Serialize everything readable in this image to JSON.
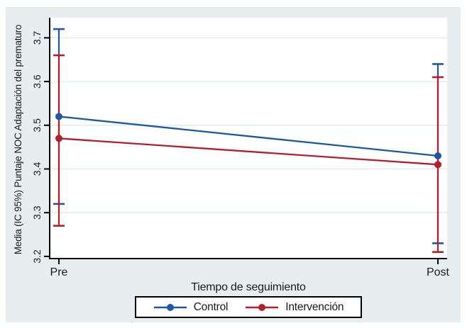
{
  "figure": {
    "background_color": "#e8eef0",
    "plot_background_color": "#ffffff",
    "grid_color": "#dfe8ea",
    "axis_color": "#000000",
    "text_color": "#1a1a1a"
  },
  "chart_data": {
    "type": "line",
    "title": "",
    "xlabel": "Tiempo de seguimiento",
    "ylabel": "Media (IC 95%) Puntaje NOC Adaptación del prematuro",
    "categories": [
      "Pre",
      "Post"
    ],
    "yticks": [
      3.2,
      3.3,
      3.4,
      3.5,
      3.6,
      3.7
    ],
    "ylim": [
      3.195,
      3.746
    ],
    "grid": true,
    "legend_position": "bottom-center",
    "error_bars": "IC 95%",
    "series": [
      {
        "name": "Control",
        "color": "#1b58a8",
        "means": [
          3.52,
          3.43
        ],
        "ci_low": [
          3.32,
          3.23
        ],
        "ci_high": [
          3.72,
          3.64
        ]
      },
      {
        "name": "Intervención",
        "color": "#b41f2b",
        "means": [
          3.47,
          3.41
        ],
        "ci_low": [
          3.27,
          3.21
        ],
        "ci_high": [
          3.66,
          3.61
        ]
      }
    ]
  }
}
